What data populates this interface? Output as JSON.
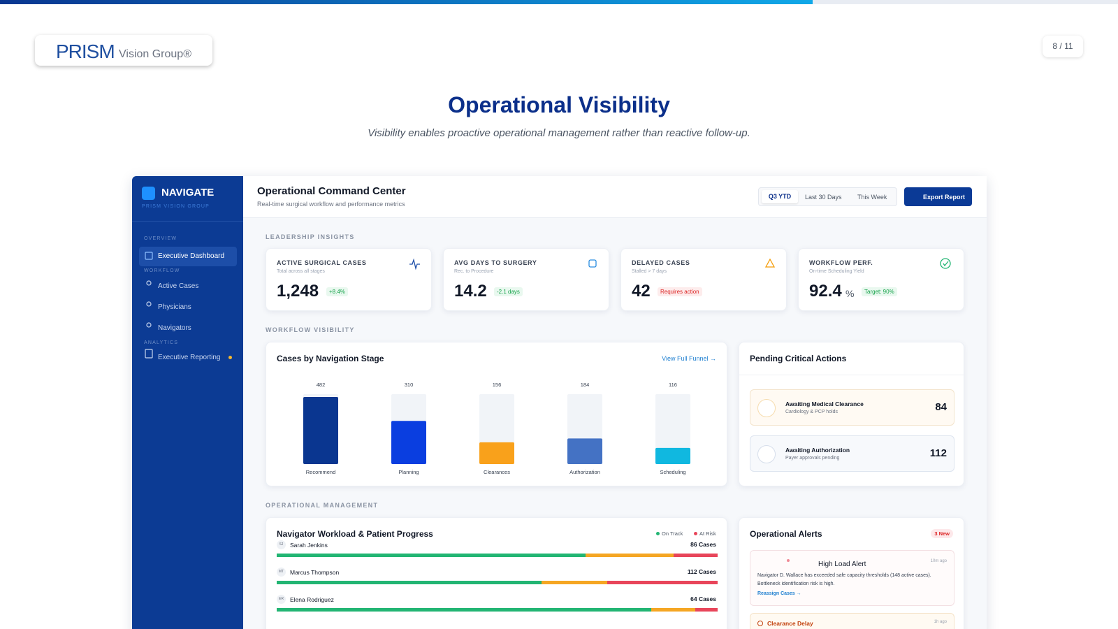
{
  "slide": {
    "page": "8 / 11",
    "title": "Operational Visibility",
    "subtitle": "Visibility enables proactive operational management rather than reactive follow-up.",
    "logo": {
      "name": "PRISM",
      "tagline": "Vision Group®"
    }
  },
  "sidebar": {
    "brand": "NAVIGATE",
    "org": "PRISM VISION GROUP",
    "sections": [
      {
        "label": "OVERVIEW",
        "items": [
          "Executive Dashboard"
        ]
      },
      {
        "label": "WORKFLOW",
        "items": [
          "Active Cases",
          "Physicians",
          "Navigators"
        ]
      },
      {
        "label": "ANALYTICS",
        "items": [
          "Executive Reporting"
        ]
      }
    ]
  },
  "header": {
    "title": "Operational Command Center",
    "subtitle": "Real-time surgical workflow and performance metrics",
    "tabs": [
      "Q3 YTD",
      "Last 30 Days",
      "This Week"
    ],
    "button": "Export Report"
  },
  "sections": [
    "LEADERSHIP INSIGHTS",
    "WORKFLOW VISIBILITY",
    "OPERATIONAL MANAGEMENT"
  ],
  "kpis": [
    {
      "label": "ACTIVE SURGICAL CASES",
      "sublabel": "Total across all stages",
      "value": "1,248",
      "note": "+8.4%"
    },
    {
      "label": "AVG DAYS TO SURGERY",
      "sublabel": "Rec. to Procedure",
      "value": "14.2",
      "note": "-2.1 days"
    },
    {
      "label": "DELAYED CASES",
      "sublabel": "Stalled > 7 days",
      "value": "42",
      "note": "Requires action"
    },
    {
      "label": "WORKFLOW PERF.",
      "sublabel": "On-time Scheduling Yield",
      "value": "92.4",
      "unit": "%",
      "note": "Target: 90%"
    }
  ],
  "chart_data": {
    "type": "bar",
    "title": "Cases by Navigation Stage",
    "link": "View Full Funnel →",
    "categories": [
      "Recommend",
      "Planning",
      "Clearances",
      "Authorization",
      "Scheduling"
    ],
    "values": [
      482,
      310,
      156,
      184,
      116
    ],
    "colors": [
      "#0a3690",
      "#0a3ee0",
      "#f9a11b",
      "#4472c4",
      "#10b8e0"
    ]
  },
  "pending": {
    "title": "Pending Critical Actions",
    "items": [
      {
        "title": "Awaiting Medical Clearance",
        "sub": "Cardiology & PCP holds",
        "count": "84"
      },
      {
        "title": "Awaiting Authorization",
        "sub": "Payer approvals pending",
        "count": "112"
      }
    ]
  },
  "workload": {
    "title": "Navigator Workload & Patient Progress",
    "legend": [
      {
        "name": "On Track",
        "color": "#22b573"
      },
      {
        "name": "At Risk",
        "color": "#e8455a"
      }
    ],
    "segment_colors": [
      "#22b573",
      "#f5a623",
      "#e8455a"
    ],
    "rows": [
      {
        "initials": "SJ",
        "name": "Sarah Jenkins",
        "cases": "86 Cases",
        "segments": [
          70,
          20,
          10
        ]
      },
      {
        "initials": "MT",
        "name": "Marcus Thompson",
        "cases": "112 Cases",
        "segments": [
          60,
          15,
          25
        ]
      },
      {
        "initials": "ER",
        "name": "Elena Rodriguez",
        "cases": "64 Cases",
        "segments": [
          85,
          10,
          5
        ]
      }
    ]
  },
  "alerts": {
    "title": "Operational Alerts",
    "badge": "3 New",
    "items": [
      {
        "title": "High Load Alert",
        "time": "10m ago",
        "text": "Navigator D. Wallace has exceeded safe capacity thresholds (148 active cases). Bottleneck identification risk is high.",
        "link": "Reassign Cases →"
      },
      {
        "title": "Clearance Delay",
        "time": "1h ago"
      }
    ]
  }
}
